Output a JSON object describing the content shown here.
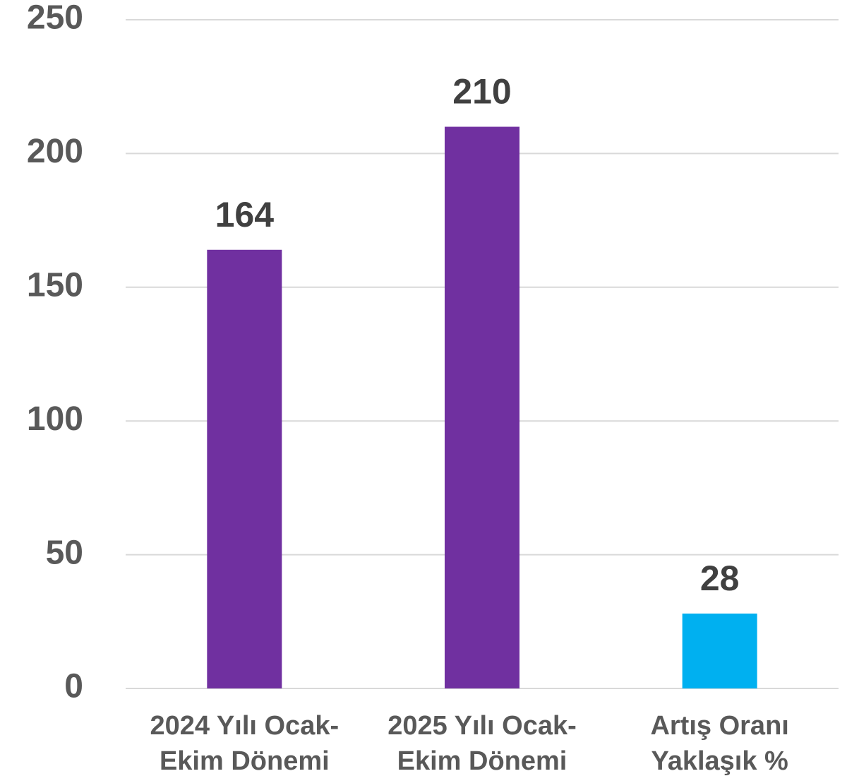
{
  "chart_data": {
    "type": "bar",
    "categories": [
      "2024 Yılı Ocak-Ekim Dönemi",
      "2025 Yılı Ocak-Ekim Dönemi",
      "Artış Oranı Yaklaşık %"
    ],
    "values": [
      164,
      210,
      28
    ],
    "colors": [
      "#7030a0",
      "#7030a0",
      "#00b0f0"
    ],
    "ylim": [
      0,
      250
    ],
    "yticks": [
      0,
      50,
      100,
      150,
      200,
      250
    ],
    "grid": true
  }
}
